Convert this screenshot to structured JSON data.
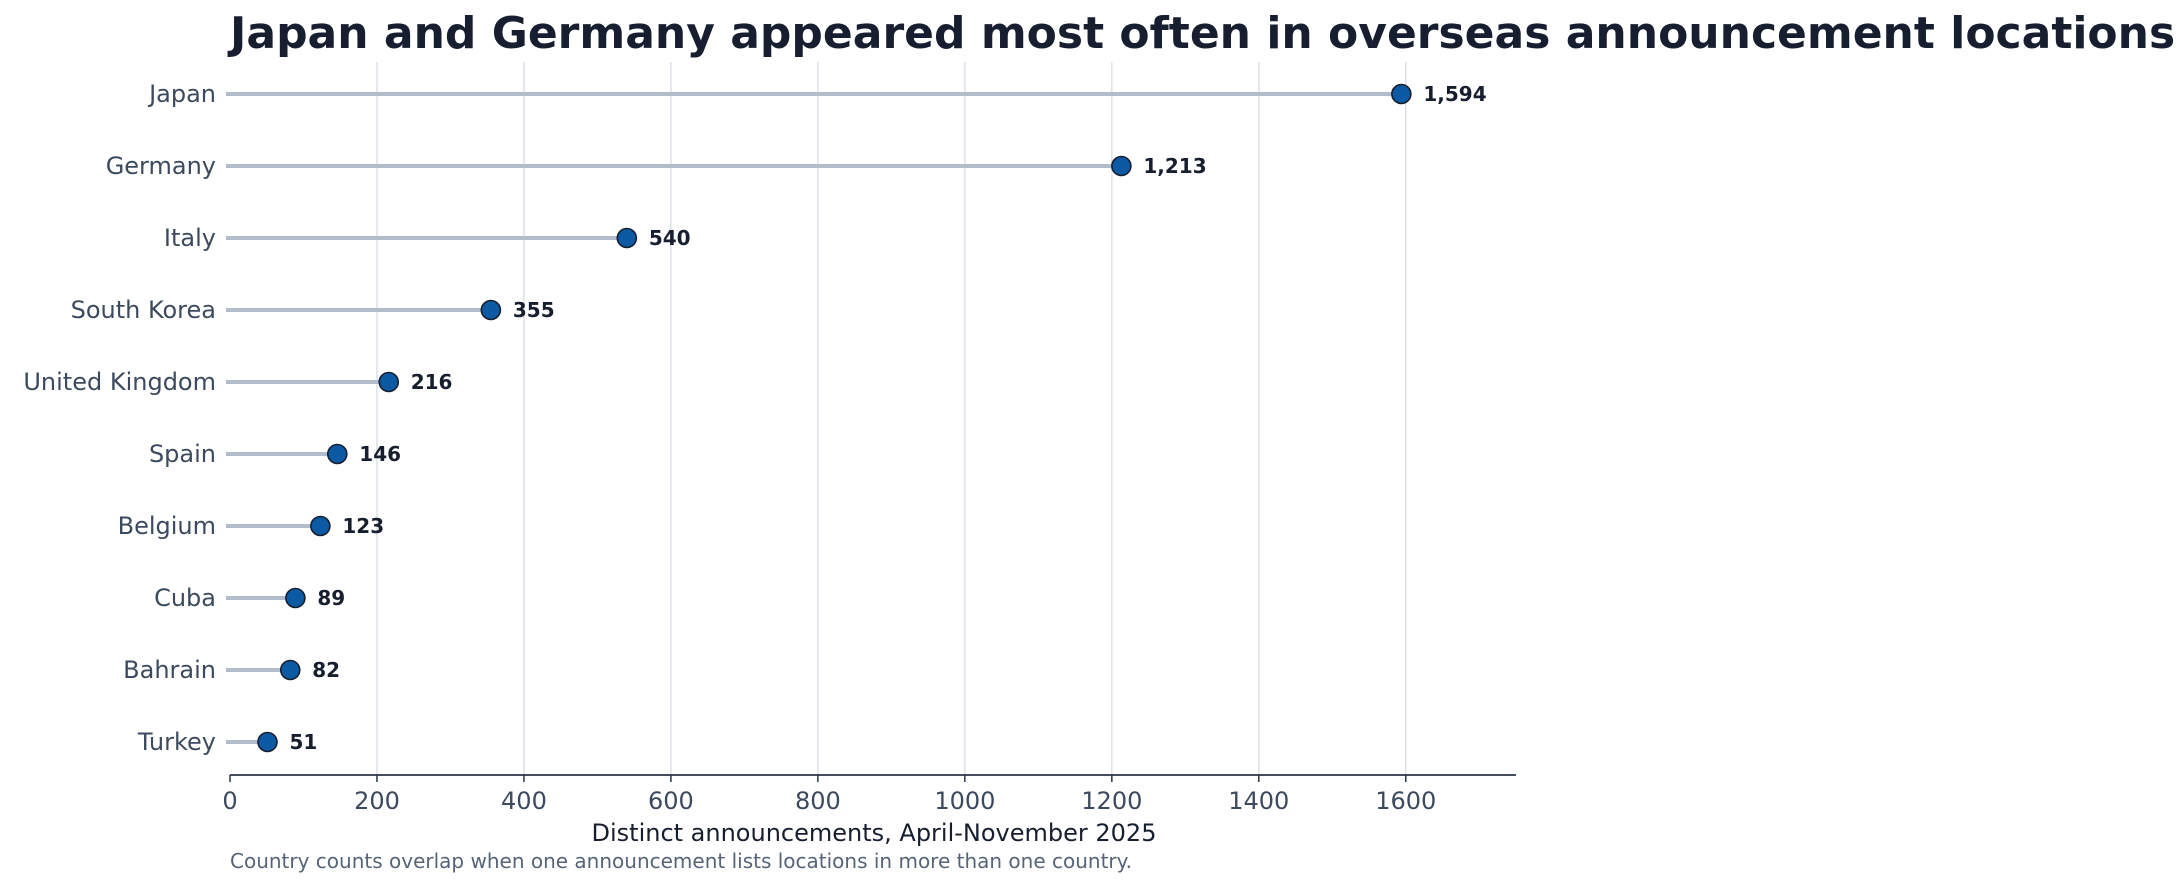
{
  "chart_data": {
    "type": "lollipop",
    "title": "Japan and Germany appeared most often in overseas announcement locations",
    "xlabel": "Distinct announcements, April-November 2025",
    "ylabel": "",
    "note": "Country counts overlap when one announcement lists locations in more than one country.",
    "xlim": [
      0,
      1750
    ],
    "xticks": [
      0,
      200,
      400,
      600,
      800,
      1000,
      1200,
      1400,
      1600
    ],
    "orientation": "horizontal",
    "grid": "vertical",
    "categories": [
      "Japan",
      "Germany",
      "Italy",
      "South Korea",
      "United Kingdom",
      "Spain",
      "Belgium",
      "Cuba",
      "Bahrain",
      "Turkey"
    ],
    "values": [
      1594,
      1213,
      540,
      355,
      216,
      146,
      123,
      89,
      82,
      51
    ],
    "value_labels": [
      "1,594",
      "1,213",
      "540",
      "355",
      "216",
      "146",
      "123",
      "89",
      "82",
      "51"
    ],
    "colors": {
      "marker": "#0b5aa3",
      "marker_edge": "#161e2f",
      "stem": "#b3bccb",
      "grid": "#dde1e8",
      "axis": "#2a3448"
    }
  }
}
